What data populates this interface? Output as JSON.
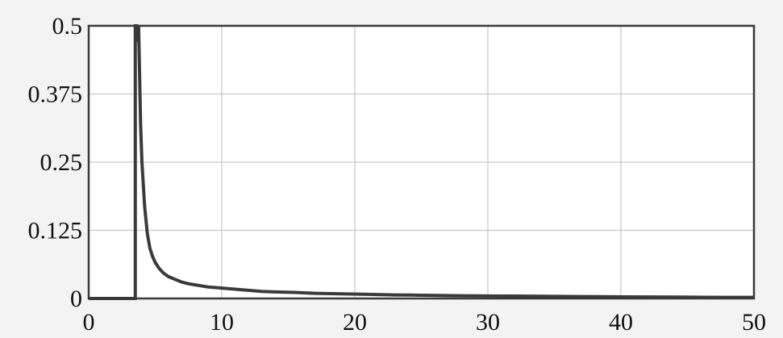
{
  "chart_data": {
    "type": "line",
    "title": "",
    "xlabel": "",
    "ylabel": "",
    "xlim": [
      0,
      50
    ],
    "ylim": [
      0,
      0.5
    ],
    "x_ticks": [
      0,
      10,
      20,
      30,
      40,
      50
    ],
    "x_tick_labels": [
      "0",
      "10",
      "20",
      "30",
      "40",
      "50"
    ],
    "y_ticks": [
      0,
      0.125,
      0.25,
      0.375,
      0.5
    ],
    "y_tick_labels": [
      "0",
      "0.125",
      "0.25",
      "0.375",
      "0.5"
    ],
    "grid": true,
    "colors": {
      "background": "#f3f3f3",
      "plot_area": "#ffffff",
      "grid": "#c8c8c8",
      "frame": "#3a3a3a",
      "line": "#3a3a3a"
    },
    "series": [
      {
        "x": [
          0,
          3.5,
          3.5,
          3.6,
          3.7,
          3.75,
          3.8,
          3.9,
          4.0,
          4.2,
          4.4,
          4.6,
          4.8,
          5.0,
          5.3,
          5.6,
          6.0,
          6.5,
          7.0,
          7.5,
          8.0,
          9.0,
          10.0,
          11.0,
          12.0,
          13.0,
          14.0,
          15.5,
          17.0,
          19.0,
          21.0,
          23.0,
          25.0,
          28.0,
          31.0,
          34.0,
          37.0,
          40.0,
          44.0,
          48.0,
          50.0
        ],
        "y": [
          0,
          0,
          0.5,
          0.5,
          0.47,
          0.5,
          0.44,
          0.32,
          0.25,
          0.17,
          0.12,
          0.092,
          0.077,
          0.066,
          0.055,
          0.047,
          0.04,
          0.035,
          0.03,
          0.027,
          0.025,
          0.021,
          0.019,
          0.017,
          0.015,
          0.013,
          0.012,
          0.011,
          0.0095,
          0.0085,
          0.0075,
          0.0065,
          0.006,
          0.005,
          0.0045,
          0.004,
          0.0035,
          0.003,
          0.0025,
          0.002,
          0.002
        ]
      }
    ]
  }
}
